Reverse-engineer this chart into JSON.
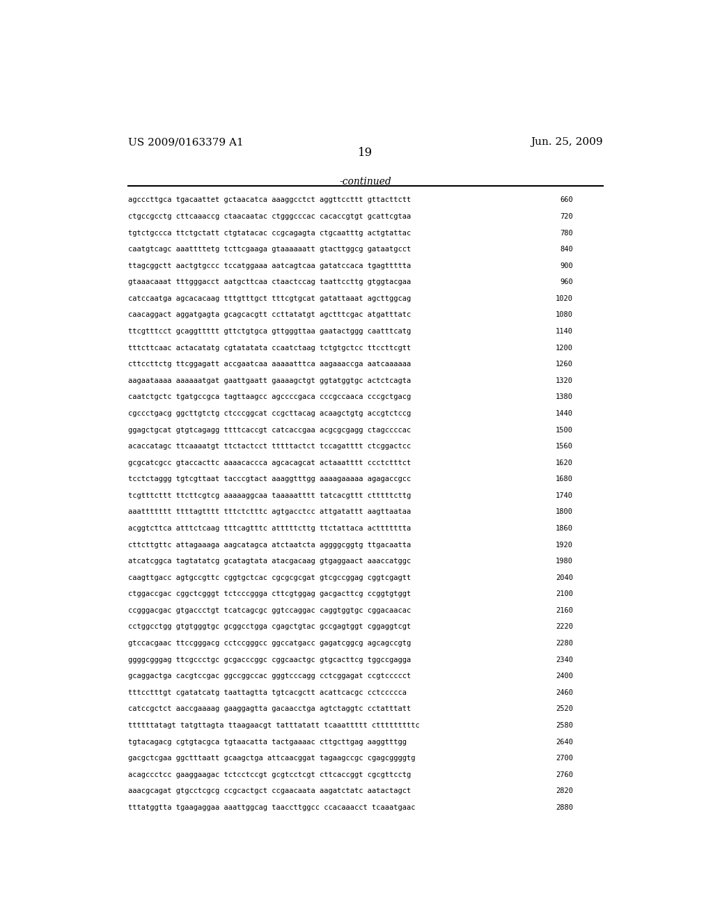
{
  "header_left": "US 2009/0163379 A1",
  "header_right": "Jun. 25, 2009",
  "page_number": "19",
  "continued_label": "-continued",
  "background_color": "#ffffff",
  "text_color": "#000000",
  "sequences": [
    [
      "agcccttgca tgacaattet gctaacatca aaaggcctct aggttccttt gttacttctt",
      "660"
    ],
    [
      "ctgccgcctg cttcaaaccg ctaacaatac ctgggcccac cacaccgtgt gcattcgtaa",
      "720"
    ],
    [
      "tgtctgccca ttctgctatt ctgtatacac ccgcagagta ctgcaatttg actgtattac",
      "780"
    ],
    [
      "caatgtcagc aaattttetg tcttcgaaga gtaaaaaatt gtacttggcg gataatgcct",
      "840"
    ],
    [
      "ttagcggctt aactgtgccc tccatggaaa aatcagtcaa gatatccaca tgagttttta",
      "900"
    ],
    [
      "gtaaacaaat tttgggacct aatgcttcaa ctaactccag taattccttg gtggtacgaa",
      "960"
    ],
    [
      "catccaatga agcacacaag tttgtttgct tttcgtgcat gatattaaat agcttggcag",
      "1020"
    ],
    [
      "caacaggact aggatgagta gcagcacgtt ccttatatgt agctttcgac atgatttatc",
      "1080"
    ],
    [
      "ttcgtttcct gcaggttttt gttctgtgca gttgggttaa gaatactggg caatttcatg",
      "1140"
    ],
    [
      "tttcttcaac actacatatg cgtatatata ccaatctaag tctgtgctcc ttccttcgtt",
      "1200"
    ],
    [
      "cttccttctg ttcggagatt accgaatcaa aaaaatttca aagaaaccga aatcaaaaaa",
      "1260"
    ],
    [
      "aagaataaaa aaaaaatgat gaattgaatt gaaaagctgt ggtatggtgc actctcagta",
      "1320"
    ],
    [
      "caatctgctc tgatgccgca tagttaagcc agccccgaca cccgccaaca cccgctgacg",
      "1380"
    ],
    [
      "cgccctgacg ggcttgtctg ctcccggcat ccgcttacag acaagctgtg accgtctccg",
      "1440"
    ],
    [
      "ggagctgcat gtgtcagagg ttttcaccgt catcaccgaa acgcgcgagg ctagccccac",
      "1500"
    ],
    [
      "acaccatagc ttcaaaatgt ttctactcct tttttactct tccagatttt ctcggactcc",
      "1560"
    ],
    [
      "gcgcatcgcc gtaccacttc aaaacaccca agcacagcat actaaatttt ccctctttct",
      "1620"
    ],
    [
      "tcctctaggg tgtcgttaat tacccgtact aaaggtttgg aaaagaaaaa agagaccgcc",
      "1680"
    ],
    [
      "tcgtttcttt ttcttcgtcg aaaaaggcaa taaaaatttt tatcacgttt ctttttcttg",
      "1740"
    ],
    [
      "aaattttttt ttttagtttt tttctctttc agtgacctcc attgatattt aagttaataa",
      "1800"
    ],
    [
      "acggtcttca atttctcaag tttcagtttc atttttcttg ttctattaca acttttttta",
      "1860"
    ],
    [
      "cttcttgttc attagaaaga aagcatagca atctaatcta aggggcggtg ttgacaatta",
      "1920"
    ],
    [
      "atcatcggca tagtatatcg gcatagtata atacgacaag gtgaggaact aaaccatggc",
      "1980"
    ],
    [
      "caagttgacc agtgccgttc cggtgctcac cgcgcgcgat gtcgccggag cggtcgagtt",
      "2040"
    ],
    [
      "ctggaccgac cggctcgggt tctcccggga cttcgtggag gacgacttcg ccggtgtggt",
      "2100"
    ],
    [
      "ccgggacgac gtgaccctgt tcatcagcgc ggtccaggac caggtggtgc cggacaacac",
      "2160"
    ],
    [
      "cctggcctgg gtgtgggtgc gcggcctgga cgagctgtac gccgagtggt cggaggtcgt",
      "2220"
    ],
    [
      "gtccacgaac ttccgggacg cctccgggcc ggccatgacc gagatcggcg agcagccgtg",
      "2280"
    ],
    [
      "ggggcgggag ttcgccctgc gcgacccggc cggcaactgc gtgcacttcg tggccgagga",
      "2340"
    ],
    [
      "gcaggactga cacgtccgac ggccggccac gggtcccagg cctcggagat ccgtccccct",
      "2400"
    ],
    [
      "tttcctttgt cgatatcatg taattagtta tgtcacgctt acattcacgc cctccccca",
      "2460"
    ],
    [
      "catccgctct aaccgaaaag gaaggagtta gacaacctga agtctaggtc cctatttatt",
      "2520"
    ],
    [
      "ttttttatagt tatgttagta ttaagaacgt tatttatatt tcaaattttt ctttttttttc",
      "2580"
    ],
    [
      "tgtacagacg cgtgtacgca tgtaacatta tactgaaaac cttgcttgag aaggtttgg",
      "2640"
    ],
    [
      "gacgctcgaa ggctttaatt gcaagctga attcaacggat tagaagccgc cgagcggggtg",
      "2700"
    ],
    [
      "acagccctcc gaaggaagac tctcctccgt gcgtcctcgt cttcaccggt cgcgttcctg",
      "2760"
    ],
    [
      "aaacgcagat gtgcctcgcg ccgcactgct ccgaacaata aagatctatc aatactagct",
      "2820"
    ],
    [
      "tttatggtta tgaagaggaa aaattggcag taaccttggcc ccacaaacct tcaaatgaac",
      "2880"
    ]
  ]
}
